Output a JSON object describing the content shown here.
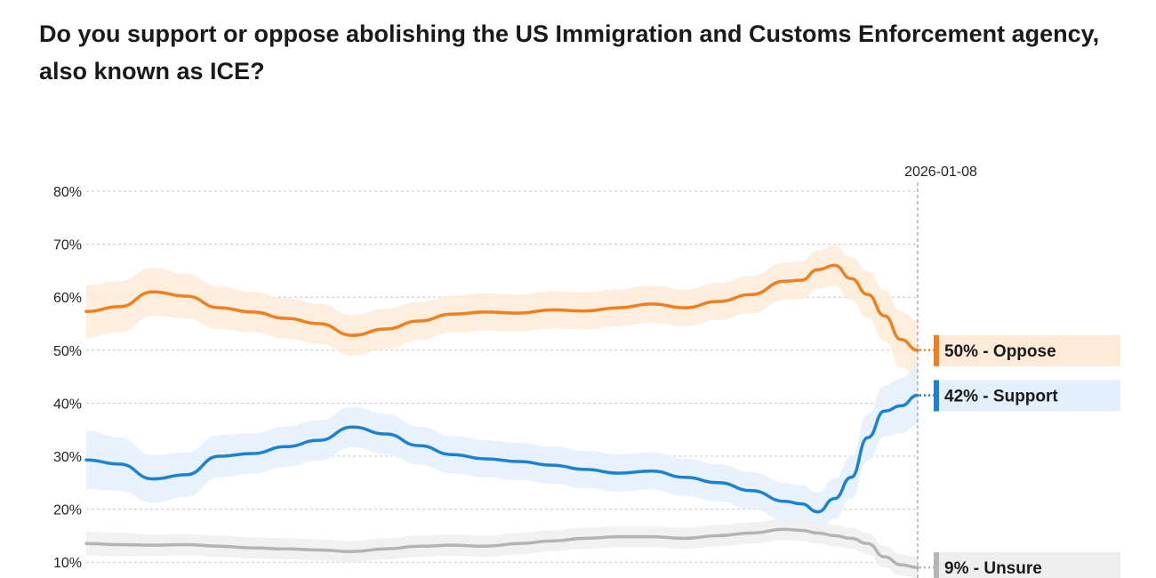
{
  "title": "Do you support or oppose abolishing the US Immigration and Customs Enforcement agency, also known as ICE?",
  "chart_data": {
    "type": "line",
    "title": "Do you support or oppose abolishing the US Immigration and Customs Enforcement agency, also known as ICE?",
    "ylim": [
      10,
      80
    ],
    "yticks": [
      "80%",
      "70%",
      "60%",
      "50%",
      "40%",
      "30%",
      "20%",
      "10%"
    ],
    "ytick_values": [
      80,
      70,
      60,
      50,
      40,
      30,
      20,
      10
    ],
    "grid": true,
    "marker_date": "2026-01-08",
    "x": [
      0,
      0.04,
      0.08,
      0.12,
      0.16,
      0.2,
      0.24,
      0.28,
      0.32,
      0.36,
      0.4,
      0.44,
      0.48,
      0.52,
      0.56,
      0.6,
      0.64,
      0.68,
      0.72,
      0.76,
      0.8,
      0.84,
      0.86,
      0.88,
      0.9,
      0.92,
      0.94,
      0.96,
      0.98,
      1.0
    ],
    "series": [
      {
        "name": "Oppose",
        "end_label": "50% - Oppose",
        "color": "#f07f1e",
        "band_color": "#fdebd8",
        "values": [
          57.3,
          58.2,
          61.0,
          60.2,
          58.0,
          57.2,
          56.0,
          55.0,
          52.8,
          54.0,
          55.5,
          56.8,
          57.2,
          57.0,
          57.6,
          57.4,
          58.0,
          58.7,
          58.0,
          59.2,
          60.5,
          63.0,
          63.2,
          65.2,
          66.0,
          63.5,
          60.5,
          56.5,
          52.0,
          50.0
        ],
        "band": [
          5.0,
          4.8,
          4.5,
          4.2,
          4.0,
          3.8,
          3.8,
          3.8,
          3.8,
          3.8,
          3.6,
          3.5,
          3.5,
          3.5,
          3.5,
          3.5,
          3.5,
          3.5,
          3.5,
          3.5,
          3.5,
          3.5,
          3.5,
          3.6,
          3.8,
          4.0,
          4.4,
          4.8,
          5.2,
          5.6
        ]
      },
      {
        "name": "Support",
        "end_label": "42% - Support",
        "color": "#1a82d0",
        "band_color": "#e3f0fb",
        "values": [
          29.3,
          28.5,
          25.7,
          26.5,
          30.0,
          30.5,
          31.8,
          33.0,
          35.5,
          34.2,
          32.0,
          30.3,
          29.5,
          29.0,
          28.3,
          27.5,
          26.8,
          27.2,
          26.0,
          25.0,
          23.5,
          21.5,
          21.0,
          19.5,
          22.0,
          26.0,
          33.5,
          38.5,
          39.5,
          41.5
        ],
        "band": [
          5.5,
          5.0,
          4.5,
          4.2,
          4.0,
          3.8,
          3.8,
          3.8,
          3.8,
          3.8,
          3.6,
          3.5,
          3.5,
          3.5,
          3.5,
          3.5,
          3.5,
          3.5,
          3.5,
          3.5,
          3.5,
          3.5,
          3.5,
          3.6,
          3.8,
          4.0,
          4.4,
          4.8,
          5.2,
          5.6
        ]
      },
      {
        "name": "Unsure",
        "end_label": "9% - Unsure",
        "color": "#b4b4b4",
        "band_color": "#eeeeee",
        "values": [
          13.5,
          13.3,
          13.2,
          13.3,
          13.0,
          12.7,
          12.5,
          12.3,
          12.0,
          12.5,
          13.0,
          13.2,
          13.0,
          13.5,
          14.0,
          14.5,
          14.8,
          14.8,
          14.5,
          15.0,
          15.5,
          16.2,
          16.0,
          15.5,
          15.0,
          14.5,
          13.5,
          11.0,
          9.5,
          9.0
        ],
        "band": [
          2.2,
          2.2,
          2.0,
          2.0,
          2.0,
          2.0,
          2.0,
          2.0,
          2.0,
          2.0,
          2.0,
          2.0,
          2.0,
          2.0,
          2.0,
          2.0,
          2.0,
          2.0,
          2.0,
          2.0,
          2.0,
          2.0,
          2.0,
          2.0,
          2.0,
          2.0,
          2.0,
          2.0,
          2.0,
          2.0
        ]
      }
    ]
  }
}
